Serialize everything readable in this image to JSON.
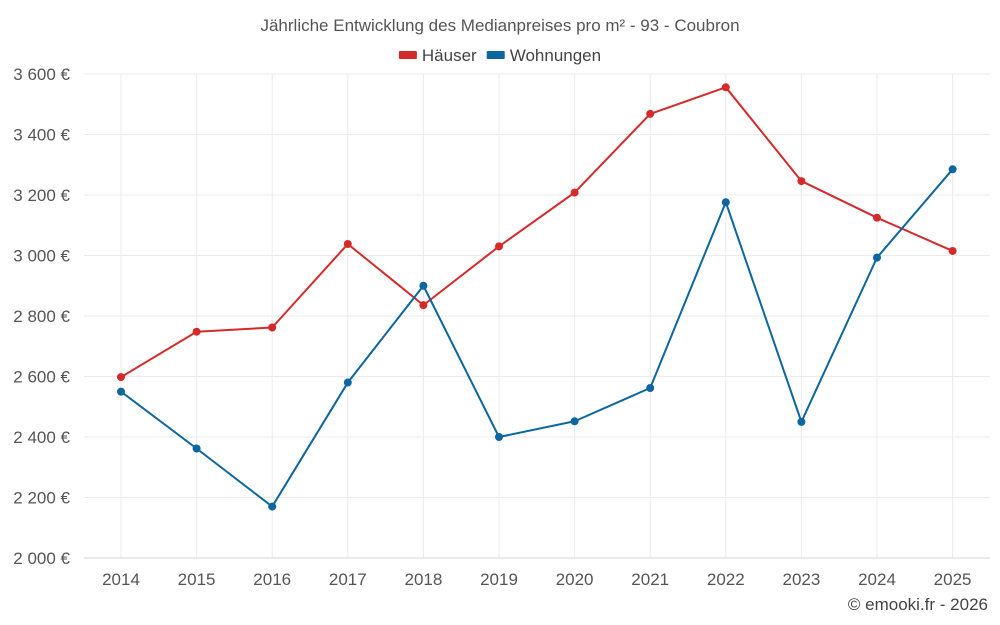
{
  "chart_data": {
    "type": "line",
    "title": "Jährliche Entwicklung des Medianpreises pro m² - 93 - Coubron",
    "categories": [
      "2014",
      "2015",
      "2016",
      "2017",
      "2018",
      "2019",
      "2020",
      "2021",
      "2022",
      "2023",
      "2024",
      "2025"
    ],
    "series": [
      {
        "name": "Häuser",
        "color": "#d42a2a",
        "values": [
          2598,
          2748,
          2762,
          3038,
          2836,
          3030,
          3208,
          3468,
          3556,
          3246,
          3125,
          3015
        ]
      },
      {
        "name": "Wohnungen",
        "color": "#0d669e",
        "values": [
          2550,
          2362,
          2170,
          2580,
          2900,
          2400,
          2452,
          2562,
          3176,
          2450,
          2993,
          3285
        ]
      }
    ],
    "ylim": [
      2000,
      3600
    ],
    "yticks": [
      2000,
      2200,
      2400,
      2600,
      2800,
      3000,
      3200,
      3400,
      3600
    ],
    "ytick_labels": [
      "2 000 €",
      "2 200 €",
      "2 400 €",
      "2 600 €",
      "2 800 €",
      "3 000 €",
      "3 200 €",
      "3 400 €",
      "3 600 €"
    ],
    "xlabel": "",
    "ylabel": "",
    "grid": true,
    "legend_position": "top-center"
  },
  "credit": "© emooki.fr - 2026"
}
